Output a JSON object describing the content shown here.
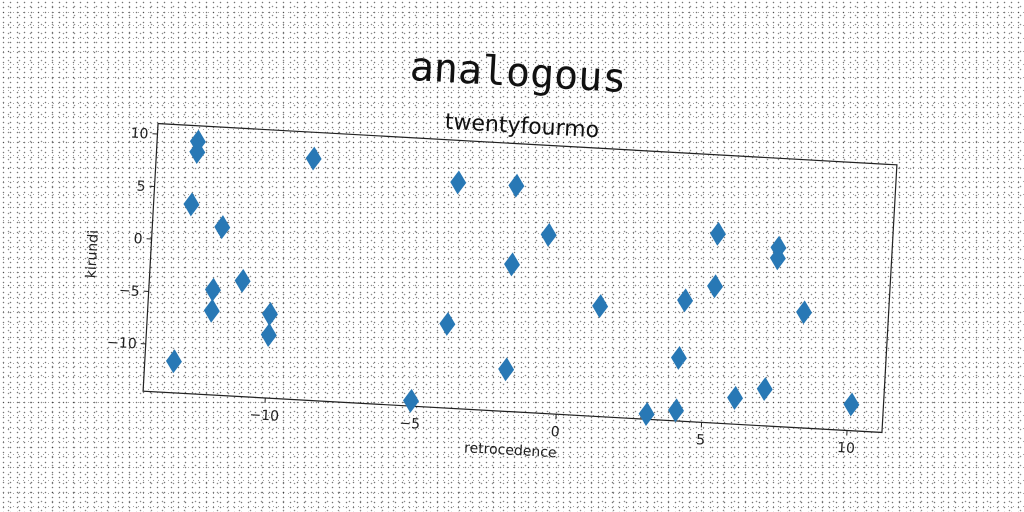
{
  "chart_data": {
    "type": "scatter",
    "title": "analogous",
    "subtitle": "twentyfourmo",
    "xlabel": "retrocedence",
    "ylabel": "kirundi",
    "xlim": [
      -14.2,
      11.2
    ],
    "ylim": [
      -14.5,
      11.0
    ],
    "xticks": [
      -10,
      -5,
      0,
      5,
      10
    ],
    "yticks": [
      10,
      5,
      0,
      -5,
      -10
    ],
    "xtick_labels": [
      "−10",
      "−5",
      "0",
      "5",
      "10"
    ],
    "ytick_labels": [
      "10",
      "5",
      "0",
      "−5",
      "−10"
    ],
    "marker": "diamond",
    "color": "#2878b5",
    "grid": false,
    "series": [
      {
        "name": "",
        "points": [
          [
            -12.8,
            9.5
          ],
          [
            -12.8,
            8.5
          ],
          [
            -12.9,
            3.5
          ],
          [
            -11.8,
            1.5
          ],
          [
            -12.0,
            -4.5
          ],
          [
            -12.0,
            -6.5
          ],
          [
            -11.0,
            -3.5
          ],
          [
            -10.0,
            -6.5
          ],
          [
            -10.0,
            -8.5
          ],
          [
            -13.2,
            -11.5
          ],
          [
            -8.8,
            8.5
          ],
          [
            -5.0,
            -14.0
          ],
          [
            -3.8,
            7.0
          ],
          [
            -3.9,
            -6.5
          ],
          [
            -1.8,
            7.0
          ],
          [
            -1.8,
            -0.5
          ],
          [
            -0.6,
            2.5
          ],
          [
            -1.8,
            -10.5
          ],
          [
            1.3,
            -4.0
          ],
          [
            3.1,
            -14.0
          ],
          [
            4.2,
            -3.0
          ],
          [
            4.1,
            -8.5
          ],
          [
            4.1,
            -13.5
          ],
          [
            5.2,
            3.5
          ],
          [
            5.2,
            -1.5
          ],
          [
            6.1,
            -12.0
          ],
          [
            7.1,
            -11.0
          ],
          [
            7.3,
            2.5
          ],
          [
            7.3,
            1.5
          ],
          [
            8.3,
            -3.5
          ],
          [
            10.1,
            -12.0
          ]
        ]
      }
    ]
  }
}
